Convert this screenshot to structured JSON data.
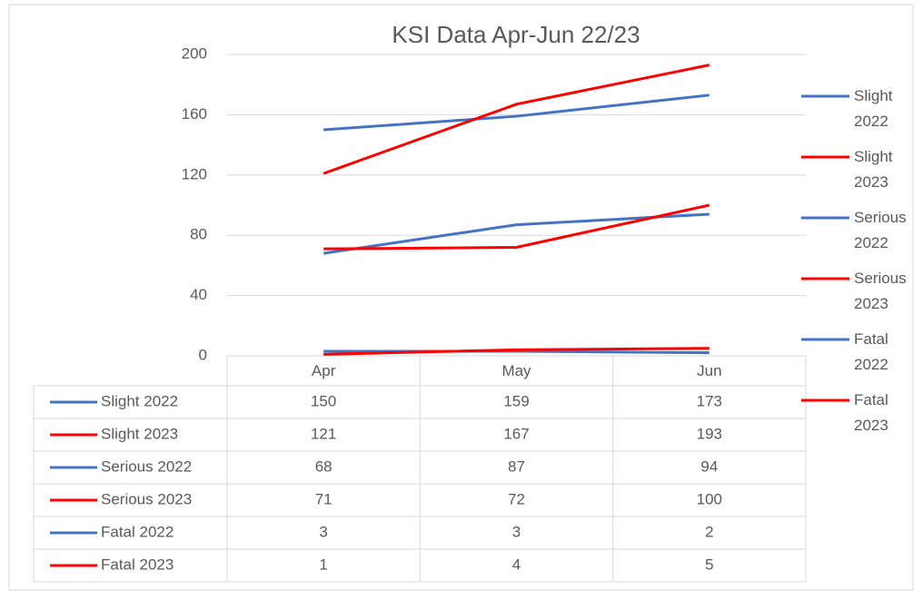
{
  "chart_data": {
    "type": "line",
    "title": "KSI Data Apr-Jun 22/23",
    "categories": [
      "Apr",
      "May",
      "Jun"
    ],
    "series": [
      {
        "name": "Slight 2022",
        "color": "#4472c4",
        "values": [
          150,
          159,
          173
        ]
      },
      {
        "name": "Slight 2023",
        "color": "#ff0000",
        "values": [
          121,
          167,
          193
        ]
      },
      {
        "name": "Serious 2022",
        "color": "#4472c4",
        "values": [
          68,
          87,
          94
        ]
      },
      {
        "name": "Serious 2023",
        "color": "#ff0000",
        "values": [
          71,
          72,
          100
        ]
      },
      {
        "name": "Fatal 2022",
        "color": "#4472c4",
        "values": [
          3,
          3,
          2
        ]
      },
      {
        "name": "Fatal 2023",
        "color": "#ff0000",
        "values": [
          1,
          4,
          5
        ]
      }
    ],
    "ylim": [
      0,
      200
    ],
    "yticks": [
      0,
      40,
      80,
      120,
      160,
      200
    ],
    "grid": true,
    "legend": "right",
    "data_table": true
  }
}
